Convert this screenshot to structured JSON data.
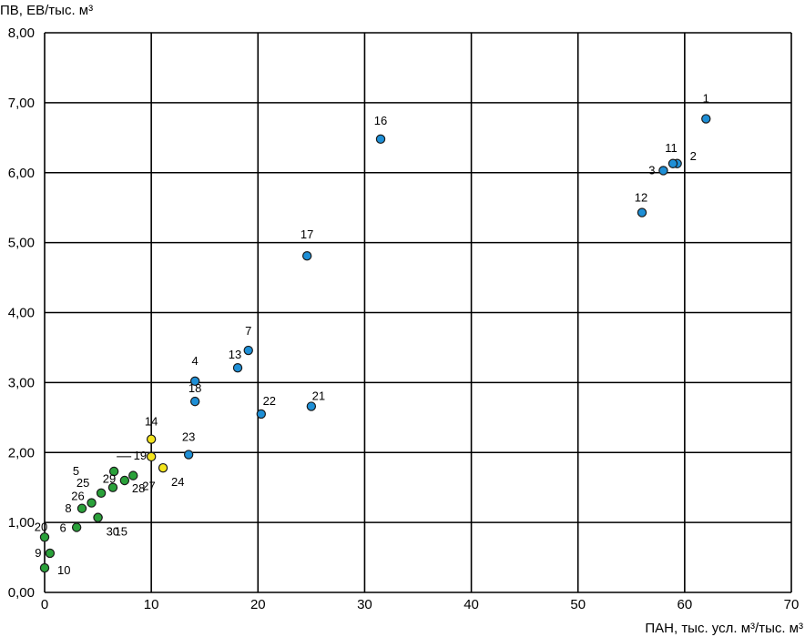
{
  "chart_data": {
    "type": "scatter",
    "ylabel": "ПВ, ЕВ/тыс. м³",
    "xlabel": "ПАН, тыс. усл. м³/тыс. м³",
    "xlim": [
      0,
      70
    ],
    "ylim": [
      0,
      8
    ],
    "x_ticks": [
      "0",
      "10",
      "20",
      "30",
      "40",
      "50",
      "60",
      "70"
    ],
    "y_ticks": [
      "0,00",
      "1,00",
      "2,00",
      "3,00",
      "4,00",
      "5,00",
      "6,00",
      "7,00",
      "8,00"
    ],
    "grid": true,
    "colors": {
      "blue": "#1e8fd6",
      "green": "#2aa13a",
      "yellow": "#f4e51c"
    },
    "points": [
      {
        "label": "1",
        "x": 62.0,
        "y": 6.77,
        "color": "blue"
      },
      {
        "label": "2",
        "x": 59.3,
        "y": 6.13,
        "color": "blue"
      },
      {
        "label": "11",
        "x": 58.9,
        "y": 6.13,
        "color": "blue"
      },
      {
        "label": "3",
        "x": 58.0,
        "y": 6.03,
        "color": "blue"
      },
      {
        "label": "12",
        "x": 56.0,
        "y": 5.43,
        "color": "blue"
      },
      {
        "label": "16",
        "x": 31.5,
        "y": 6.48,
        "color": "blue"
      },
      {
        "label": "17",
        "x": 24.6,
        "y": 4.81,
        "color": "blue"
      },
      {
        "label": "7",
        "x": 19.1,
        "y": 3.46,
        "color": "blue"
      },
      {
        "label": "13",
        "x": 18.1,
        "y": 3.21,
        "color": "blue"
      },
      {
        "label": "4",
        "x": 14.1,
        "y": 3.02,
        "color": "blue"
      },
      {
        "label": "18",
        "x": 14.1,
        "y": 2.73,
        "color": "blue"
      },
      {
        "label": "22",
        "x": 20.3,
        "y": 2.55,
        "color": "blue"
      },
      {
        "label": "21",
        "x": 25.0,
        "y": 2.66,
        "color": "blue"
      },
      {
        "label": "23",
        "x": 13.5,
        "y": 1.97,
        "color": "blue"
      },
      {
        "label": "14",
        "x": 10.0,
        "y": 2.19,
        "color": "yellow"
      },
      {
        "label": "19",
        "x": 10.0,
        "y": 1.94,
        "color": "yellow"
      },
      {
        "label": "24",
        "x": 11.1,
        "y": 1.78,
        "color": "yellow"
      },
      {
        "label": "5",
        "x": 6.5,
        "y": 1.73,
        "color": "green"
      },
      {
        "label": "27",
        "x": 8.3,
        "y": 1.67,
        "color": "green"
      },
      {
        "label": "28",
        "x": 7.5,
        "y": 1.6,
        "color": "green"
      },
      {
        "label": "29",
        "x": 6.4,
        "y": 1.5,
        "color": "green"
      },
      {
        "label": "25",
        "x": 5.3,
        "y": 1.42,
        "color": "green"
      },
      {
        "label": "26",
        "x": 4.4,
        "y": 1.28,
        "color": "green"
      },
      {
        "label": "8",
        "x": 3.5,
        "y": 1.2,
        "color": "green"
      },
      {
        "label": "30",
        "x": 5.0,
        "y": 1.07,
        "color": "green"
      },
      {
        "label": "15",
        "x": 5.0,
        "y": 1.07,
        "color": "green"
      },
      {
        "label": "6",
        "x": 3.0,
        "y": 0.93,
        "color": "green"
      },
      {
        "label": "20",
        "x": 0.0,
        "y": 0.79,
        "color": "green"
      },
      {
        "label": "9",
        "x": 0.5,
        "y": 0.56,
        "color": "green"
      },
      {
        "label": "10",
        "x": 0.0,
        "y": 0.35,
        "color": "green"
      }
    ]
  }
}
